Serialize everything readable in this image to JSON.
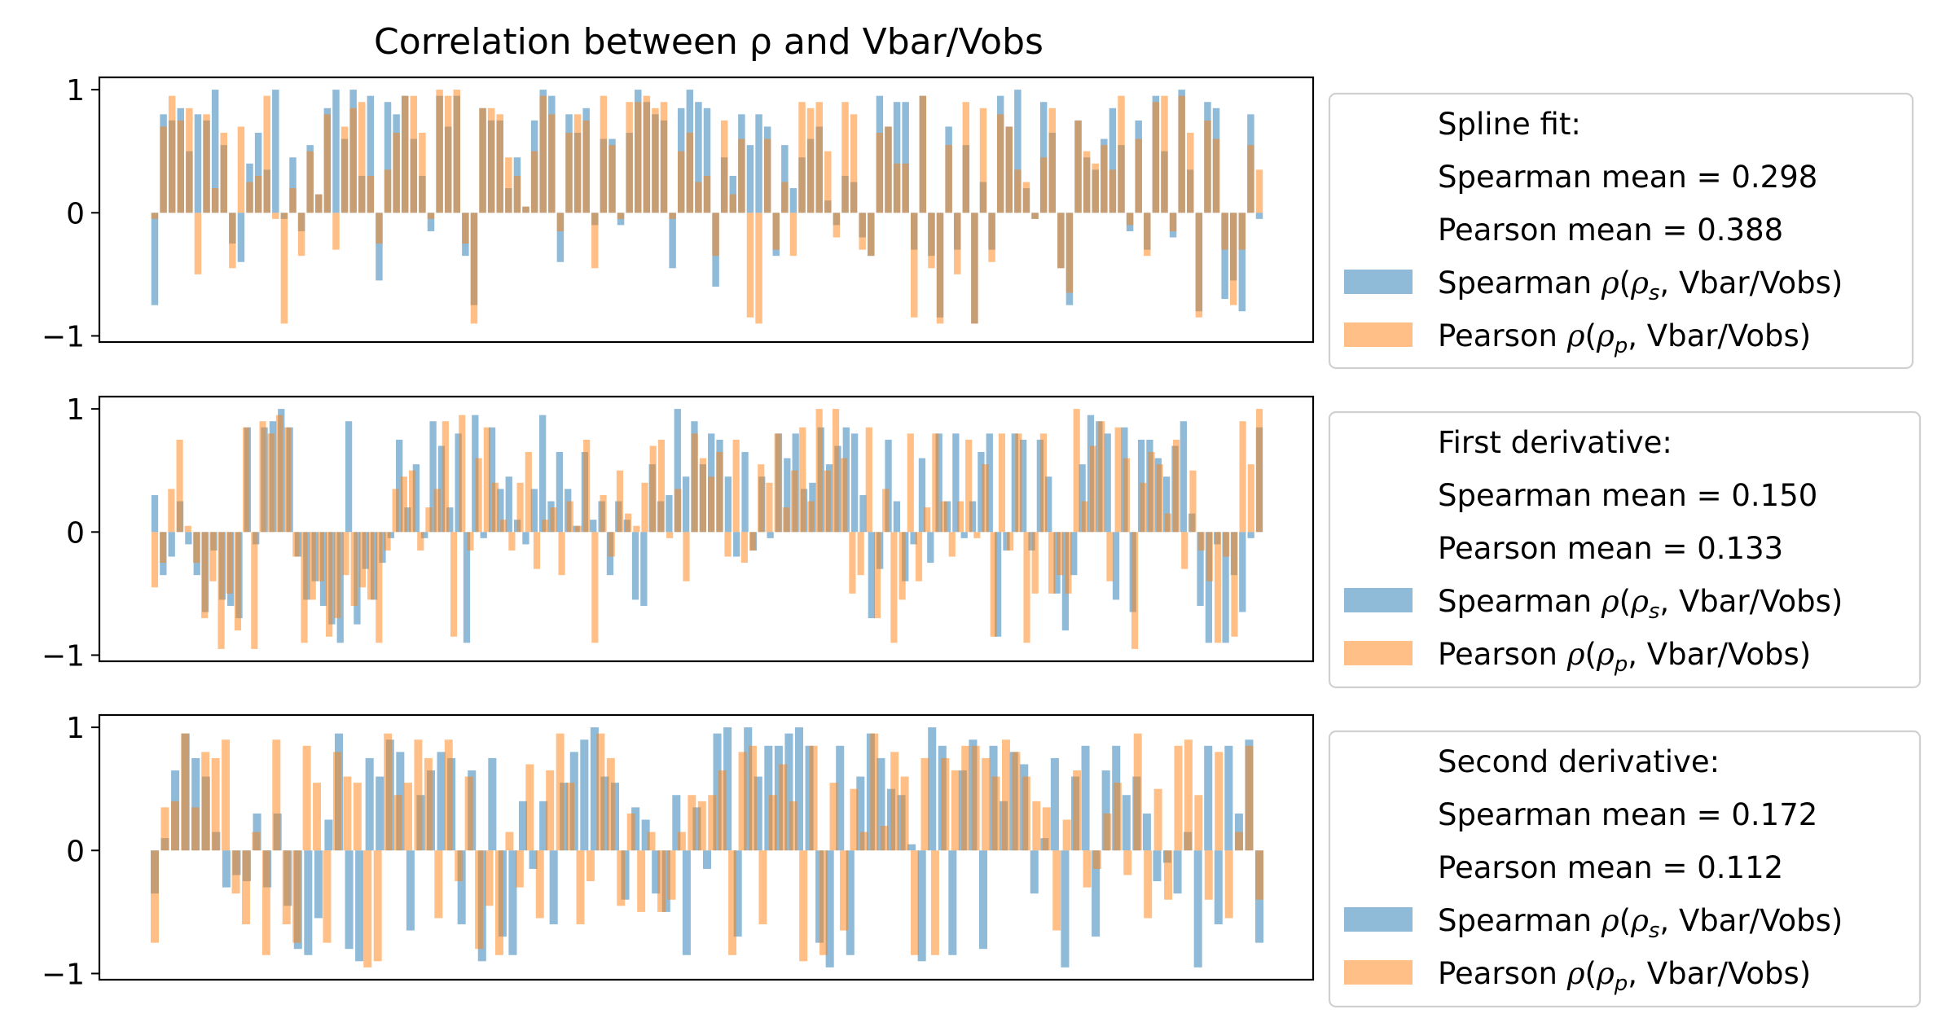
{
  "chart_data": [
    {
      "type": "bar",
      "title": "Correlation between ρ and Vbar/Vobs",
      "ylim": [
        -1.05,
        1.1
      ],
      "yticks": [
        "1",
        "0",
        "−1"
      ],
      "ytick_values": [
        1,
        0,
        -1
      ],
      "legend_heading": [
        "Spline fit:",
        "Spearman mean = 0.298",
        "Pearson mean = 0.388"
      ],
      "legend_placement": "outside-right",
      "series": [
        {
          "name": "Spearman ρ(ρ_s, Vbar/Vobs)",
          "label_parts": [
            "Spearman ",
            "ρ",
            "(",
            "ρ",
            "s",
            ", Vbar/Vobs)"
          ],
          "color": "#1f77b4",
          "values": [
            -0.75,
            0.8,
            0.75,
            0.85,
            0.5,
            0.8,
            0.75,
            1.0,
            0.55,
            -0.25,
            -0.4,
            0.4,
            0.65,
            0.35,
            1.0,
            -0.05,
            0.45,
            -0.15,
            0.55,
            0.15,
            0.85,
            1.0,
            0.6,
            1.0,
            0.3,
            0.95,
            -0.55,
            0.9,
            0.8,
            0.95,
            0.6,
            0.3,
            -0.15,
            0.95,
            0.7,
            0.95,
            -0.35,
            -0.75,
            0.85,
            0.75,
            0.75,
            0.2,
            0.45,
            0.05,
            0.75,
            1.0,
            0.95,
            -0.4,
            0.8,
            0.65,
            0.85,
            -0.1,
            0.6,
            0.6,
            -0.1,
            0.65,
            1.0,
            0.9,
            0.8,
            0.75,
            -0.45,
            0.85,
            1.0,
            0.9,
            0.85,
            -0.6,
            0.45,
            0.3,
            0.8,
            0.55,
            0.8,
            0.7,
            -0.35,
            0.55,
            0.2,
            0.45,
            0.6,
            0.7,
            0.1,
            -0.1,
            0.3,
            0.25,
            -0.2,
            -0.35,
            0.95,
            0.7,
            0.9,
            0.9,
            -0.3,
            0.95,
            -0.35,
            -0.85,
            0.7,
            -0.3,
            0.55,
            -0.9,
            0.25,
            -0.3,
            0.95,
            0.7,
            1.0,
            0.2,
            -0.05,
            0.9,
            0.65,
            -0.45,
            -0.75,
            0.75,
            0.45,
            0.35,
            0.6,
            0.85,
            0.55,
            -0.15,
            0.75,
            -0.3,
            0.95,
            0.5,
            -0.2,
            1.0,
            0.35,
            -0.8,
            0.9,
            0.85,
            -0.7,
            -0.55,
            -0.8,
            0.8,
            -0.05
          ]
        },
        {
          "name": "Pearson ρ(ρ_p, Vbar/Vobs)",
          "label_parts": [
            "Pearson ",
            "ρ",
            "(",
            "ρ",
            "p",
            ", Vbar/Vobs)"
          ],
          "color": "#ff7f0e",
          "values": [
            -0.05,
            0.7,
            0.95,
            0.75,
            0.85,
            -0.5,
            0.8,
            0.2,
            0.65,
            -0.45,
            0.7,
            0.25,
            0.3,
            0.95,
            -0.05,
            -0.9,
            0.2,
            -0.35,
            0.5,
            0.15,
            0.8,
            -0.3,
            0.7,
            0.85,
            0.9,
            0.3,
            -0.25,
            0.35,
            0.65,
            0.95,
            0.95,
            0.65,
            -0.05,
            1.0,
            0.95,
            1.0,
            -0.25,
            -0.9,
            0.85,
            0.85,
            0.8,
            0.45,
            0.3,
            0.05,
            0.5,
            0.95,
            0.8,
            -0.15,
            0.65,
            0.8,
            0.75,
            -0.45,
            0.95,
            0.55,
            -0.05,
            0.9,
            0.9,
            0.95,
            0.85,
            0.9,
            -0.05,
            0.5,
            0.65,
            0.25,
            0.3,
            -0.35,
            0.75,
            0.15,
            0.6,
            -0.85,
            -0.9,
            0.6,
            -0.3,
            0.25,
            -0.35,
            0.9,
            0.85,
            0.9,
            0.5,
            -0.2,
            0.9,
            0.8,
            -0.3,
            -0.35,
            0.65,
            0.7,
            0.4,
            0.4,
            -0.85,
            0.95,
            -0.45,
            -0.9,
            0.55,
            -0.5,
            0.9,
            -0.9,
            0.85,
            -0.4,
            0.8,
            0.7,
            0.35,
            0.25,
            -0.05,
            0.45,
            0.85,
            -0.45,
            -0.65,
            0.75,
            0.5,
            0.4,
            0.55,
            0.35,
            0.95,
            -0.1,
            0.6,
            -0.35,
            0.9,
            0.95,
            -0.15,
            0.95,
            0.65,
            -0.85,
            0.75,
            0.6,
            -0.3,
            -0.75,
            -0.3,
            0.55,
            0.35
          ]
        }
      ]
    },
    {
      "type": "bar",
      "ylim": [
        -1.05,
        1.1
      ],
      "yticks": [
        "1",
        "0",
        "−1"
      ],
      "ytick_values": [
        1,
        0,
        -1
      ],
      "legend_heading": [
        "First derivative:",
        "Spearman mean = 0.150",
        "Pearson mean = 0.133"
      ],
      "legend_placement": "outside-right",
      "series": [
        {
          "name": "Spearman ρ(ρ_s, Vbar/Vobs)",
          "label_parts": [
            "Spearman ",
            "ρ",
            "(",
            "ρ",
            "s",
            ",  Vbar/Vobs)"
          ],
          "color": "#1f77b4",
          "values": [
            0.3,
            -0.35,
            -0.2,
            0.25,
            -0.1,
            -0.35,
            -0.65,
            -0.15,
            -0.55,
            -0.6,
            -0.7,
            0.85,
            -0.1,
            0.85,
            0.9,
            1.0,
            0.85,
            -0.2,
            -0.55,
            -0.4,
            -0.6,
            -0.75,
            -0.9,
            0.9,
            -0.75,
            -0.3,
            -0.55,
            -0.25,
            -0.05,
            0.75,
            0.2,
            0.55,
            -0.05,
            0.9,
            0.7,
            0.2,
            0.8,
            -0.9,
            0.95,
            -0.05,
            0.85,
            0.35,
            0.45,
            0.1,
            -0.1,
            0.35,
            0.95,
            0.25,
            0.65,
            0.35,
            0.05,
            0.65,
            0.1,
            0.25,
            -0.35,
            0.25,
            0.1,
            -0.55,
            -0.6,
            0.55,
            0.25,
            0.3,
            1.0,
            0.45,
            0.9,
            0.55,
            0.8,
            0.75,
            0.45,
            -0.2,
            0.65,
            -0.15,
            0.45,
            -0.05,
            0.8,
            0.6,
            0.8,
            0.35,
            0.4,
            0.85,
            0.55,
            0.7,
            0.85,
            0.8,
            0.3,
            -0.7,
            -0.3,
            0.75,
            0.25,
            -0.4,
            -0.1,
            0.6,
            -0.25,
            0.8,
            0.25,
            0.8,
            -0.05,
            0.25,
            0.65,
            0.8,
            -0.85,
            -0.15,
            0.8,
            0.75,
            -0.15,
            0.75,
            0.45,
            -0.5,
            -0.8,
            -0.35,
            0.55,
            0.95,
            0.9,
            0.8,
            -0.55,
            0.85,
            -0.65,
            0.75,
            0.75,
            0.6,
            0.45,
            0.7,
            0.9,
            0.15,
            -0.6,
            -0.9,
            -0.1,
            -0.9,
            -0.35,
            -0.65,
            -0.05,
            0.85
          ]
        },
        {
          "name": "Pearson ρ(ρ_p, Vbar/Vobs)",
          "label_parts": [
            "Pearson ",
            "ρ",
            "(",
            "ρ",
            "p",
            ",  Vbar/Vobs)"
          ],
          "color": "#ff7f0e",
          "values": [
            -0.45,
            -0.25,
            0.35,
            0.75,
            0.05,
            -0.25,
            -0.7,
            -0.4,
            -0.95,
            -0.5,
            -0.8,
            0.85,
            -0.95,
            0.9,
            0.8,
            0.95,
            0.85,
            -0.2,
            -0.9,
            -0.55,
            -0.4,
            -0.85,
            -0.7,
            -0.35,
            -0.6,
            -0.45,
            -0.55,
            -0.9,
            -0.15,
            0.35,
            0.45,
            0.5,
            -0.15,
            0.2,
            0.35,
            0.9,
            -0.85,
            0.95,
            -0.15,
            0.6,
            0.85,
            0.4,
            0.1,
            -0.15,
            0.4,
            0.65,
            -0.3,
            0.1,
            0.2,
            -0.35,
            0.25,
            0.05,
            0.75,
            -0.9,
            0.3,
            -0.2,
            0.5,
            0.15,
            0.05,
            0.4,
            0.7,
            0.75,
            -0.05,
            0.35,
            -0.4,
            0.8,
            0.6,
            0.45,
            0.65,
            -0.2,
            0.75,
            -0.25,
            -0.15,
            0.55,
            0.4,
            0.8,
            0.2,
            0.5,
            0.85,
            0.25,
            1.0,
            0.5,
            1.0,
            0.6,
            -0.5,
            -0.35,
            0.85,
            -0.7,
            0.35,
            -0.9,
            -0.55,
            0.8,
            -0.4,
            0.2,
            0.8,
            0.25,
            -0.2,
            0.25,
            0.75,
            -0.05,
            0.55,
            -0.85,
            0.8,
            -0.15,
            0.8,
            -0.9,
            -0.5,
            0.8,
            -0.5,
            -0.35,
            -0.5,
            1.0,
            0.25,
            0.7,
            0.9,
            -0.4,
            0.85,
            0.6,
            -0.95,
            0.4,
            0.65,
            0.55,
            0.15,
            0.75,
            -0.3,
            0.5,
            -0.15,
            -0.4,
            -0.9,
            -0.2,
            -0.85,
            0.9,
            0.55,
            1.0
          ]
        }
      ]
    },
    {
      "type": "bar",
      "ylim": [
        -1.05,
        1.1
      ],
      "yticks": [
        "1",
        "0",
        "−1"
      ],
      "ytick_values": [
        1,
        0,
        -1
      ],
      "legend_heading": [
        "Second derivative:",
        "Spearman mean = 0.172",
        "Pearson mean = 0.112"
      ],
      "legend_placement": "outside-right",
      "series": [
        {
          "name": "Spearman ρ(ρ_s, Vbar/Vobs)",
          "label_parts": [
            "Spearman ",
            "ρ",
            "(",
            "ρ",
            "s",
            ",  Vbar/Vobs)"
          ],
          "color": "#1f77b4",
          "values": [
            -0.35,
            0.1,
            0.65,
            0.95,
            0.75,
            0.6,
            0.15,
            -0.3,
            -0.2,
            -0.25,
            0.3,
            -0.3,
            0.3,
            -0.45,
            -0.8,
            -0.85,
            -0.55,
            0.25,
            0.95,
            -0.8,
            -0.9,
            0.75,
            0.6,
            0.9,
            0.8,
            -0.65,
            0.45,
            0.65,
            0.8,
            0.75,
            -0.6,
            0.65,
            -0.9,
            0.75,
            -0.7,
            -0.85,
            0.4,
            -0.15,
            0.4,
            -0.6,
            0.55,
            0.8,
            0.9,
            1.0,
            0.6,
            0.55,
            -0.4,
            0.35,
            0.25,
            -0.35,
            -0.5,
            0.45,
            -0.85,
            0.35,
            -0.15,
            0.95,
            1.0,
            -0.7,
            1.0,
            0.6,
            0.85,
            0.85,
            0.95,
            1.0,
            0.85,
            -0.75,
            -0.95,
            0.85,
            -0.85,
            0.6,
            0.95,
            0.75,
            0.5,
            0.45,
            0.05,
            -0.9,
            1.0,
            0.85,
            -0.85,
            0.65,
            0.9,
            -0.8,
            0.85,
            0.4,
            0.8,
            0.7,
            -0.35,
            0.1,
            0.75,
            -0.95,
            0.6,
            0.85,
            -0.7,
            0.65,
            0.85,
            0.45,
            0.6,
            0.3,
            -0.25,
            -0.1,
            -0.35,
            0.15,
            -0.95,
            0.85,
            -0.6,
            0.85,
            0.3,
            0.9,
            -0.75
          ]
        },
        {
          "name": "Pearson ρ(ρ_p, Vbar/Vobs)",
          "label_parts": [
            "Pearson ",
            "ρ",
            "(",
            "ρ",
            "p",
            ",  Vbar/Vobs)"
          ],
          "color": "#ff7f0e",
          "values": [
            -0.75,
            0.35,
            0.4,
            0.95,
            0.35,
            0.8,
            0.75,
            0.9,
            -0.35,
            -0.6,
            0.15,
            -0.85,
            0.9,
            -0.6,
            -0.75,
            0.85,
            0.55,
            -0.75,
            0.8,
            0.6,
            0.55,
            -0.95,
            -0.9,
            0.95,
            0.45,
            0.55,
            0.9,
            0.75,
            -0.55,
            0.9,
            -0.25,
            0.6,
            -0.8,
            -0.45,
            -0.85,
            0.15,
            -0.3,
            0.7,
            -0.55,
            0.65,
            0.95,
            0.55,
            -0.6,
            -0.25,
            0.95,
            0.75,
            -0.45,
            0.3,
            -0.5,
            0.15,
            -0.5,
            -0.4,
            0.15,
            0.45,
            0.4,
            0.45,
            0.65,
            -0.85,
            0.8,
            0.85,
            -0.6,
            0.45,
            0.7,
            0.4,
            -0.9,
            0.85,
            -0.85,
            0.55,
            -0.65,
            0.5,
            0.15,
            0.95,
            0.2,
            0.8,
            0.6,
            -0.85,
            0.75,
            -0.85,
            0.75,
            0.65,
            0.85,
            0.85,
            0.75,
            0.6,
            0.9,
            0.8,
            0.6,
            0.4,
            0.35,
            -0.65,
            0.25,
            0.65,
            -0.3,
            -0.15,
            0.3,
            0.55,
            -0.2,
            0.95,
            -0.55,
            0.5,
            -0.4,
            0.85,
            0.9,
            0.45,
            -0.4,
            0.8,
            -0.55,
            0.15,
            0.85,
            -0.4
          ]
        }
      ]
    }
  ]
}
